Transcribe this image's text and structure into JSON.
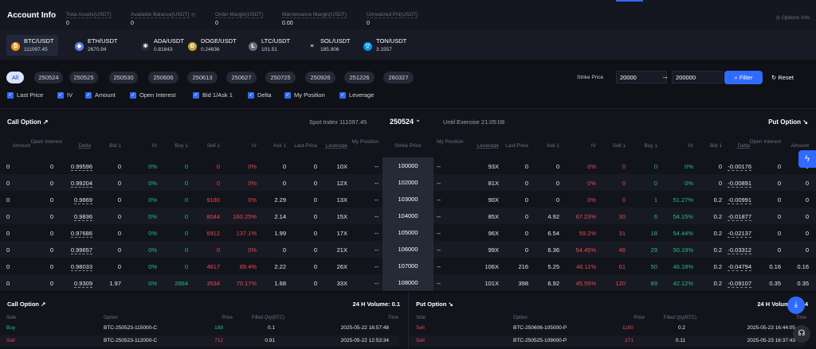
{
  "account": {
    "title": "Account Info",
    "options_info": "Options Info",
    "stats": [
      {
        "label": "Total Assets(USDT)",
        "value": "0"
      },
      {
        "label": "Available Balance(USDT)",
        "value": "0"
      },
      {
        "label": "Order Margin(USDT)",
        "value": "0"
      },
      {
        "label": "Maintenance Margin(USDT)",
        "value": "0.00"
      },
      {
        "label": "Unrealized Pnl(USDT)",
        "value": "0"
      }
    ]
  },
  "coins": [
    {
      "name": "BTC/USDT",
      "price": "111097.45",
      "icon": "bitcoin-icon",
      "color": "#f7931a",
      "glyph": "₿"
    },
    {
      "name": "ETH/USDT",
      "price": "2670.94",
      "icon": "ethereum-icon",
      "color": "#627eea",
      "glyph": "◆"
    },
    {
      "name": "ADA/USDT",
      "price": "0.81643",
      "icon": "cardano-icon",
      "color": "#2a2d36",
      "glyph": "✻"
    },
    {
      "name": "DOGE/USDT",
      "price": "0.24636",
      "icon": "dogecoin-icon",
      "color": "#c2a633",
      "glyph": "Ð"
    },
    {
      "name": "LTC/USDT",
      "price": "101.51",
      "icon": "litecoin-icon",
      "color": "#6b6e7a",
      "glyph": "Ł"
    },
    {
      "name": "SOL/USDT",
      "price": "185.906",
      "icon": "solana-icon",
      "color": "#1b1d26",
      "glyph": "≡"
    },
    {
      "name": "TON/USDT",
      "price": "3.1557",
      "icon": "toncoin-icon",
      "color": "#0098ea",
      "glyph": "▽"
    }
  ],
  "expiries": [
    "All",
    "250524",
    "250525",
    "250530",
    "250606",
    "250613",
    "250627",
    "250725",
    "250926",
    "251226",
    "260327"
  ],
  "strike": {
    "label": "Strike Price",
    "from": "20000",
    "to": "200000",
    "filter": "Filter",
    "reset": "Reset"
  },
  "columns_toggle": [
    "Last Price",
    "IV",
    "Amount",
    "Open Interest",
    "Bid 1/Ask 1",
    "Delta",
    "My Position",
    "Leverage"
  ],
  "chain": {
    "call_title": "Call Option ↗",
    "put_title": "Put Option ↘",
    "spot": "Spot Index 111097.45",
    "expiry": "250524",
    "until": "Until Exercise  21:05:08",
    "call_headers": [
      "Amount",
      "Open Interest",
      "Delta",
      "Bid 1",
      "IV",
      "Buy 1",
      "Sell 1",
      "IV",
      "Ask 1",
      "Last Price",
      "Leverage",
      "My Position"
    ],
    "strike_header": "Strike Price",
    "put_headers": [
      "My Position",
      "Leverage",
      "Last Price",
      "Ask 1",
      "IV",
      "Sell 1",
      "Buy 1",
      "IV",
      "Bid 1",
      "Delta",
      "Open Interest",
      "Amount"
    ],
    "rows": [
      {
        "c": [
          "0",
          "0",
          "0.99596",
          "0",
          "0%",
          "0",
          "0",
          "0%",
          "0",
          "0",
          "10X",
          "--"
        ],
        "k": "100000",
        "p": [
          "--",
          "93X",
          "0",
          "0",
          "0%",
          "0",
          "0",
          "0%",
          "0",
          "-0.00176",
          "0",
          "0"
        ]
      },
      {
        "c": [
          "0",
          "0",
          "0.99204",
          "0",
          "0%",
          "0",
          "0",
          "0%",
          "0",
          "0",
          "12X",
          "--"
        ],
        "k": "102000",
        "p": [
          "--",
          "81X",
          "0",
          "0",
          "0%",
          "0",
          "0",
          "0%",
          "0",
          "-0.00891",
          "0",
          "0"
        ]
      },
      {
        "c": [
          "0",
          "0",
          "0.9869",
          "0",
          "0%",
          "0",
          "9180",
          "0%",
          "2.29",
          "0",
          "13X",
          "--"
        ],
        "k": "103000",
        "p": [
          "--",
          "90X",
          "0",
          "0",
          "0%",
          "0",
          "1",
          "51.27%",
          "0.2",
          "-0.00991",
          "0",
          "0"
        ]
      },
      {
        "c": [
          "0",
          "0",
          "0.9836",
          "0",
          "0%",
          "0",
          "8044",
          "160.25%",
          "2.14",
          "0",
          "15X",
          "--"
        ],
        "k": "104000",
        "p": [
          "--",
          "85X",
          "0",
          "4.92",
          "67.23%",
          "30",
          "6",
          "54.15%",
          "0.2",
          "-0.01877",
          "0",
          "0"
        ]
      },
      {
        "c": [
          "0",
          "0",
          "0.97686",
          "0",
          "0%",
          "0",
          "6912",
          "137.1%",
          "1.99",
          "0",
          "17X",
          "--"
        ],
        "k": "105000",
        "p": [
          "--",
          "96X",
          "0",
          "6.54",
          "59.2%",
          "31",
          "18",
          "54.44%",
          "0.2",
          "-0.02137",
          "0",
          "0"
        ]
      },
      {
        "c": [
          "0",
          "0",
          "0.99657",
          "0",
          "0%",
          "0",
          "0",
          "0%",
          "0",
          "0",
          "21X",
          "--"
        ],
        "k": "106000",
        "p": [
          "--",
          "99X",
          "0",
          "6.36",
          "54.45%",
          "46",
          "29",
          "50.19%",
          "0.2",
          "-0.03312",
          "0",
          "0"
        ]
      },
      {
        "c": [
          "0",
          "0",
          "0.98033",
          "0",
          "0%",
          "0",
          "4617",
          "89.4%",
          "2.22",
          "0",
          "26X",
          "--"
        ],
        "k": "107000",
        "p": [
          "--",
          "106X",
          "216",
          "5.25",
          "48.11%",
          "61",
          "50",
          "46.18%",
          "0.2",
          "-0.04794",
          "0.16",
          "0.16"
        ]
      },
      {
        "c": [
          "0",
          "0",
          "0.9309",
          "1.97",
          "0%",
          "2664",
          "3534",
          "70.17%",
          "1.68",
          "0",
          "33X",
          "--"
        ],
        "k": "108000",
        "p": [
          "--",
          "101X",
          "398",
          "6.92",
          "45.55%",
          "120",
          "89",
          "42.12%",
          "0.2",
          "-0.09107",
          "0.35",
          "0.35"
        ]
      }
    ]
  },
  "trades": {
    "call": {
      "title": "Call Option ↗",
      "volume": "24 H Volume:  0.1",
      "headers": [
        "Side",
        "Option",
        "Price",
        "Filled Qty(BTC)",
        "Time"
      ],
      "rows": [
        [
          "Buy",
          "BTC-250523-115000-C",
          "188",
          "0.1",
          "2025-05-22 16:57:48"
        ],
        [
          "Sell",
          "BTC-250523-112000-C",
          "712",
          "0.91",
          "2025-05-22 12:53:34"
        ]
      ]
    },
    "put": {
      "title": "Put Option ↘",
      "volume": "24 H Volume:  0.34",
      "headers": [
        "Side",
        "Option",
        "Price",
        "Filled Qty(BTC)",
        "Time"
      ],
      "rows": [
        [
          "Sell",
          "BTC-250606-105000-P",
          "1160",
          "0.2",
          "2025-05-23 16:44:05"
        ],
        [
          "Sell",
          "BTC-250525-109000-P",
          "271",
          "0.11",
          "2025-05-23 16:37:43"
        ]
      ]
    }
  }
}
